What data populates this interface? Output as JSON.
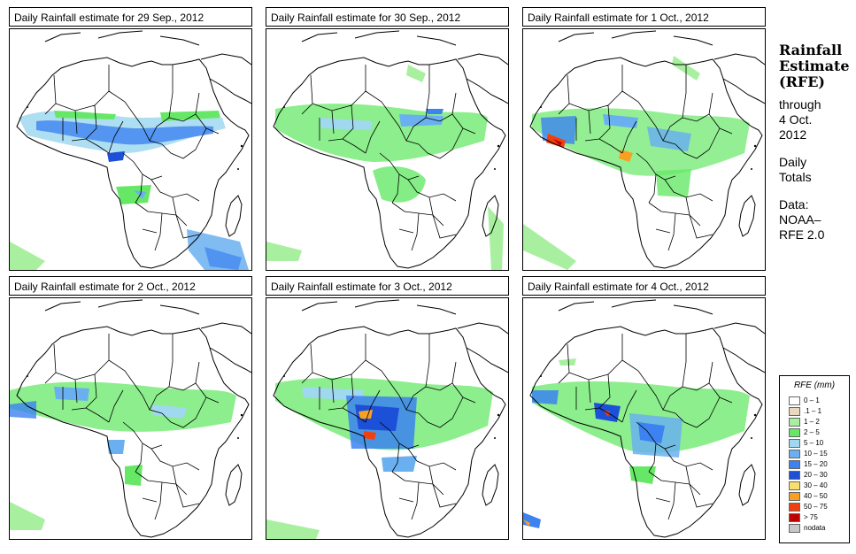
{
  "maps": [
    {
      "title": "Daily Rainfall estimate for  29 Sep., 2012"
    },
    {
      "title": "Daily Rainfall estimate for  30 Sep., 2012"
    },
    {
      "title": "Daily Rainfall estimate for  1 Oct., 2012"
    },
    {
      "title": "Daily Rainfall estimate for  2 Oct., 2012"
    },
    {
      "title": "Daily Rainfall estimate for  3 Oct., 2012"
    },
    {
      "title": "Daily Rainfall estimate for  4 Oct., 2012"
    }
  ],
  "sidebar": {
    "title_line1": "Rainfall",
    "title_line2": "Estimate",
    "title_line3": "(RFE)",
    "through": "through",
    "date_line1": "4 Oct.",
    "date_line2": "2012",
    "daily": "Daily",
    "totals": "Totals",
    "data_label": "Data:",
    "source_line1": "NOAA–",
    "source_line2": "RFE 2.0"
  },
  "legend": {
    "title": "RFE (mm)",
    "items": [
      {
        "label": "0 – 1",
        "color": "#ffffff"
      },
      {
        "label": ".1 – 1",
        "color": "#e8d8c0"
      },
      {
        "label": "1 – 2",
        "color": "#a8f0a0"
      },
      {
        "label": "2 – 5",
        "color": "#66e866"
      },
      {
        "label": "5 – 10",
        "color": "#a0d8f0"
      },
      {
        "label": "10 – 15",
        "color": "#6ab0f0"
      },
      {
        "label": "15 – 20",
        "color": "#3c82f0"
      },
      {
        "label": "20 – 30",
        "color": "#1c50d8"
      },
      {
        "label": "30 – 40",
        "color": "#f8e070"
      },
      {
        "label": "40 – 50",
        "color": "#f8a020"
      },
      {
        "label": "50 – 75",
        "color": "#f04010"
      },
      {
        "label": "> 75",
        "color": "#c00000"
      },
      {
        "label": "nodata",
        "color": "#c8c8c8"
      }
    ]
  }
}
